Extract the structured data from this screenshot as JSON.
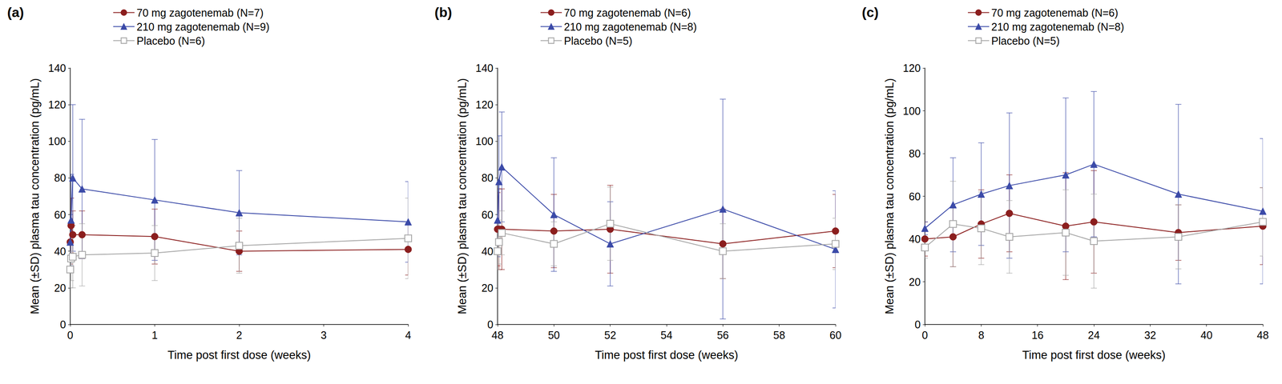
{
  "chart_data": [
    {
      "type": "line",
      "title": "(a)",
      "x_label": "Time post first dose (weeks)",
      "y_label": "Mean (±SD) plasma tau concentration (pg/mL)",
      "x": [
        0,
        0.01,
        0.03,
        0.14,
        1,
        2,
        4
      ],
      "xlim": [
        0,
        4
      ],
      "xticks": [
        0,
        1,
        2,
        3,
        4
      ],
      "ylim": [
        0,
        140
      ],
      "yticks": [
        0,
        20,
        40,
        60,
        80,
        100,
        120,
        140
      ],
      "grid": false,
      "series": [
        {
          "name": "70 mg zagotenemab (N=7)",
          "color": "#8b1e1e",
          "marker": "circle",
          "values": [
            45,
            54,
            49,
            49,
            48,
            40,
            41
          ],
          "sd": [
            12,
            15,
            13,
            13,
            15,
            11,
            14
          ]
        },
        {
          "name": "210 mg zagotenemab (N=9)",
          "color": "#3b4aa8",
          "marker": "triangle",
          "values": [
            45,
            57,
            80,
            74,
            68,
            61,
            56
          ],
          "sd": [
            15,
            25,
            40,
            38,
            33,
            23,
            22
          ]
        },
        {
          "name": "Placebo (N=6)",
          "color": "#a6a6a6",
          "marker": "open_square",
          "values": [
            30,
            36,
            37,
            38,
            39,
            43,
            47
          ],
          "sd": [
            10,
            12,
            17,
            17,
            15,
            15,
            22
          ]
        }
      ]
    },
    {
      "type": "line",
      "title": "(b)",
      "x_label": "Time post first dose (weeks)",
      "y_label": "Mean (±SD) plasma tau concentration (pg/mL)",
      "x": [
        48,
        48.05,
        48.15,
        50,
        52,
        56,
        60
      ],
      "xlim": [
        48,
        60
      ],
      "xticks": [
        48,
        50,
        52,
        54,
        56,
        58,
        60
      ],
      "ylim": [
        0,
        140
      ],
      "yticks": [
        0,
        20,
        40,
        60,
        80,
        100,
        120,
        140
      ],
      "grid": false,
      "series": [
        {
          "name": "70 mg zagotenemab (N=6)",
          "color": "#8b1e1e",
          "marker": "circle",
          "values": [
            52,
            52,
            52,
            51,
            52,
            44,
            51
          ],
          "sd": [
            20,
            22,
            22,
            20,
            24,
            19,
            20
          ]
        },
        {
          "name": "210 mg zagotenemab (N=8)",
          "color": "#3b4aa8",
          "marker": "triangle",
          "values": [
            57,
            78,
            86,
            60,
            44,
            63,
            41
          ],
          "sd": [
            20,
            25,
            30,
            31,
            23,
            60,
            32
          ]
        },
        {
          "name": "Placebo (N=5)",
          "color": "#a6a6a6",
          "marker": "open_square",
          "values": [
            40,
            45,
            50,
            44,
            55,
            40,
            44
          ],
          "sd": [
            10,
            12,
            12,
            12,
            20,
            15,
            14
          ]
        }
      ]
    },
    {
      "type": "line",
      "title": "(c)",
      "x_label": "Time post first dose (weeks)",
      "y_label": "Mean (±SD) plasma tau concentration (pg/mL)",
      "x": [
        0,
        4,
        8,
        12,
        20,
        24,
        36,
        48
      ],
      "xlim": [
        0,
        48
      ],
      "xticks": [
        0,
        8,
        16,
        24,
        32,
        40,
        48
      ],
      "ylim": [
        0,
        120
      ],
      "yticks": [
        0,
        20,
        40,
        60,
        80,
        100,
        120
      ],
      "grid": false,
      "series": [
        {
          "name": "70 mg zagotenemab (N=6)",
          "color": "#8b1e1e",
          "marker": "circle",
          "values": [
            40,
            41,
            47,
            52,
            46,
            48,
            43,
            46
          ],
          "sd": [
            8,
            14,
            16,
            18,
            25,
            24,
            13,
            18
          ]
        },
        {
          "name": "210 mg zagotenemab (N=8)",
          "color": "#3b4aa8",
          "marker": "triangle",
          "values": [
            45,
            56,
            61,
            65,
            70,
            75,
            61,
            53
          ],
          "sd": [
            3,
            22,
            24,
            34,
            36,
            34,
            42,
            34
          ]
        },
        {
          "name": "Placebo (N=5)",
          "color": "#a6a6a6",
          "marker": "open_square",
          "values": [
            36,
            47,
            45,
            41,
            43,
            39,
            41,
            48
          ],
          "sd": [
            5,
            20,
            17,
            17,
            20,
            22,
            15,
            16
          ]
        }
      ]
    }
  ]
}
